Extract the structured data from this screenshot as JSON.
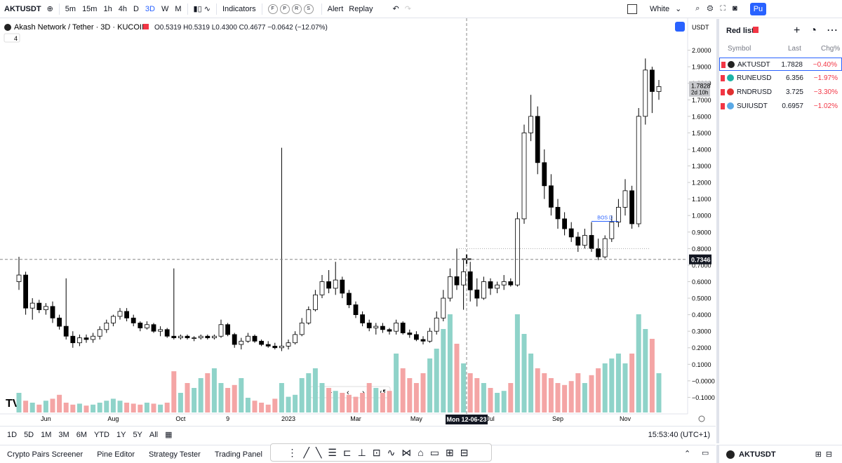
{
  "toolbar": {
    "symbol": "AKTUSDT",
    "intervals": [
      "5m",
      "15m",
      "1h",
      "4h",
      "D",
      "3D",
      "W",
      "M"
    ],
    "indicators": "Indicators",
    "templates": [
      "F",
      "P",
      "R",
      "S"
    ],
    "alert": "Alert",
    "replay": "Replay",
    "theme": "White",
    "publish": "Pu"
  },
  "legend": {
    "title": "Akash Network / Tether · 3D · KUCOIN",
    "ohlc": "O0.5319 H0.5319 L0.4300 C0.4677 −0.0642 (−12.07%)",
    "collapsed": "4"
  },
  "chart_data": {
    "type": "candlestick",
    "currency": "USDT",
    "categories": [
      null,
      null,
      null,
      null,
      "Jun",
      null,
      null,
      null,
      null,
      null,
      null,
      null,
      null,
      null,
      "Aug",
      null,
      null,
      null,
      null,
      null,
      null,
      null,
      null,
      null,
      "Oct",
      null,
      null,
      null,
      null,
      null,
      null,
      "9",
      null,
      null,
      null,
      null,
      null,
      null,
      null,
      null,
      "2023",
      null,
      null,
      null,
      null,
      null,
      null,
      null,
      null,
      null,
      "Mar",
      null,
      null,
      null,
      null,
      null,
      null,
      null,
      null,
      "May",
      null,
      null,
      null,
      null,
      null,
      null,
      null,
      null,
      null,
      null,
      "Jul",
      null,
      null,
      null,
      null,
      null,
      null,
      null,
      null,
      null,
      "Sep",
      null,
      null,
      null,
      null,
      null,
      null,
      null,
      null,
      null,
      "Nov",
      null,
      null,
      null,
      null,
      null
    ],
    "ohlc": [
      [
        0.6,
        0.75,
        0.55,
        0.64
      ],
      [
        0.64,
        0.66,
        0.4,
        0.44
      ],
      [
        0.44,
        0.5,
        0.37,
        0.47
      ],
      [
        0.47,
        0.49,
        0.41,
        0.43
      ],
      [
        0.43,
        0.47,
        0.4,
        0.45
      ],
      [
        0.45,
        0.48,
        0.35,
        0.38
      ],
      [
        0.38,
        0.4,
        0.31,
        0.33
      ],
      [
        0.33,
        0.62,
        0.25,
        0.27
      ],
      [
        0.27,
        0.3,
        0.2,
        0.23
      ],
      [
        0.23,
        0.28,
        0.21,
        0.26
      ],
      [
        0.26,
        0.28,
        0.23,
        0.25
      ],
      [
        0.25,
        0.29,
        0.23,
        0.27
      ],
      [
        0.27,
        0.33,
        0.25,
        0.31
      ],
      [
        0.31,
        0.37,
        0.29,
        0.35
      ],
      [
        0.35,
        0.4,
        0.33,
        0.39
      ],
      [
        0.39,
        0.44,
        0.37,
        0.42
      ],
      [
        0.42,
        0.44,
        0.36,
        0.38
      ],
      [
        0.38,
        0.4,
        0.33,
        0.35
      ],
      [
        0.35,
        0.36,
        0.3,
        0.32
      ],
      [
        0.32,
        0.36,
        0.31,
        0.34
      ],
      [
        0.34,
        0.35,
        0.29,
        0.3
      ],
      [
        0.3,
        0.33,
        0.27,
        0.31
      ],
      [
        0.31,
        0.32,
        0.26,
        0.27
      ],
      [
        0.27,
        0.68,
        0.25,
        0.26
      ],
      [
        0.26,
        0.28,
        0.25,
        0.27
      ],
      [
        0.27,
        0.28,
        0.25,
        0.26
      ],
      [
        0.26,
        0.27,
        0.24,
        0.26
      ],
      [
        0.26,
        0.28,
        0.25,
        0.27
      ],
      [
        0.27,
        0.28,
        0.25,
        0.26
      ],
      [
        0.26,
        0.28,
        0.25,
        0.27
      ],
      [
        0.27,
        0.37,
        0.26,
        0.34
      ],
      [
        0.34,
        0.35,
        0.27,
        0.28
      ],
      [
        0.28,
        0.29,
        0.2,
        0.22
      ],
      [
        0.22,
        0.26,
        0.19,
        0.24
      ],
      [
        0.24,
        0.29,
        0.23,
        0.27
      ],
      [
        0.27,
        0.28,
        0.23,
        0.24
      ],
      [
        0.24,
        0.25,
        0.21,
        0.22
      ],
      [
        0.22,
        0.24,
        0.2,
        0.21
      ],
      [
        0.21,
        0.23,
        0.19,
        0.2
      ],
      [
        0.2,
        1.41,
        0.18,
        0.21
      ],
      [
        0.21,
        0.25,
        0.19,
        0.23
      ],
      [
        0.23,
        0.3,
        0.22,
        0.28
      ],
      [
        0.28,
        0.38,
        0.27,
        0.35
      ],
      [
        0.35,
        0.45,
        0.34,
        0.43
      ],
      [
        0.43,
        0.55,
        0.42,
        0.52
      ],
      [
        0.52,
        0.64,
        0.5,
        0.6
      ],
      [
        0.6,
        0.67,
        0.53,
        0.56
      ],
      [
        0.56,
        0.72,
        0.52,
        0.61
      ],
      [
        0.61,
        0.63,
        0.5,
        0.53
      ],
      [
        0.53,
        0.55,
        0.44,
        0.46
      ],
      [
        0.46,
        0.48,
        0.38,
        0.4
      ],
      [
        0.4,
        0.42,
        0.33,
        0.35
      ],
      [
        0.35,
        0.37,
        0.3,
        0.32
      ],
      [
        0.32,
        0.35,
        0.28,
        0.33
      ],
      [
        0.33,
        0.35,
        0.29,
        0.31
      ],
      [
        0.31,
        0.32,
        0.28,
        0.3
      ],
      [
        0.3,
        0.37,
        0.28,
        0.35
      ],
      [
        0.35,
        0.36,
        0.28,
        0.29
      ],
      [
        0.29,
        0.31,
        0.26,
        0.28
      ],
      [
        0.28,
        0.3,
        0.24,
        0.25
      ],
      [
        0.25,
        0.27,
        0.22,
        0.24
      ],
      [
        0.24,
        0.32,
        0.23,
        0.3
      ],
      [
        0.3,
        0.42,
        0.28,
        0.38
      ],
      [
        0.38,
        0.55,
        0.36,
        0.5
      ],
      [
        0.5,
        0.68,
        0.48,
        0.63
      ],
      [
        0.63,
        0.8,
        0.55,
        0.58
      ],
      [
        0.58,
        0.73,
        0.43,
        0.66
      ],
      [
        0.66,
        0.72,
        0.48,
        0.55
      ],
      [
        0.55,
        0.62,
        0.45,
        0.5
      ],
      [
        0.5,
        0.63,
        0.49,
        0.6
      ],
      [
        0.6,
        0.62,
        0.52,
        0.56
      ],
      [
        0.56,
        0.6,
        0.53,
        0.58
      ],
      [
        0.58,
        0.64,
        0.55,
        0.6
      ],
      [
        0.6,
        0.62,
        0.57,
        0.58
      ],
      [
        0.58,
        1.02,
        0.57,
        0.98
      ],
      [
        0.98,
        1.55,
        0.95,
        1.5
      ],
      [
        1.5,
        1.73,
        1.45,
        1.6
      ],
      [
        1.6,
        1.66,
        1.25,
        1.32
      ],
      [
        1.32,
        1.4,
        1.1,
        1.18
      ],
      [
        1.18,
        1.25,
        1.0,
        1.05
      ],
      [
        1.05,
        1.1,
        0.92,
        0.98
      ],
      [
        0.98,
        1.02,
        0.88,
        0.92
      ],
      [
        0.92,
        0.96,
        0.84,
        0.87
      ],
      [
        0.87,
        0.9,
        0.78,
        0.82
      ],
      [
        0.82,
        0.92,
        0.8,
        0.88
      ],
      [
        0.88,
        0.96,
        0.78,
        0.8
      ],
      [
        0.8,
        0.86,
        0.73,
        0.75
      ],
      [
        0.75,
        0.88,
        0.74,
        0.86
      ],
      [
        0.86,
        1.0,
        0.84,
        0.96
      ],
      [
        0.96,
        1.1,
        0.93,
        1.05
      ],
      [
        1.05,
        1.22,
        1.0,
        1.15
      ],
      [
        1.15,
        1.18,
        0.92,
        0.95
      ],
      [
        0.95,
        1.65,
        0.93,
        1.6
      ],
      [
        1.6,
        1.95,
        1.55,
        1.88
      ],
      [
        1.88,
        1.9,
        1.62,
        1.75
      ],
      [
        1.75,
        1.82,
        1.7,
        1.78
      ]
    ],
    "volume": [
      20,
      12,
      10,
      8,
      12,
      14,
      18,
      10,
      8,
      9,
      7,
      8,
      10,
      12,
      14,
      12,
      10,
      9,
      8,
      10,
      9,
      8,
      10,
      42,
      20,
      30,
      25,
      35,
      40,
      45,
      30,
      25,
      28,
      35,
      15,
      12,
      10,
      8,
      14,
      30,
      16,
      18,
      35,
      40,
      45,
      30,
      25,
      22,
      20,
      18,
      16,
      20,
      30,
      25,
      20,
      22,
      60,
      45,
      35,
      30,
      40,
      55,
      65,
      85,
      100,
      70,
      50,
      40,
      35,
      30,
      25,
      20,
      22,
      30,
      100,
      80,
      60,
      45,
      40,
      35,
      30,
      28,
      32,
      40,
      30,
      38,
      45,
      50,
      55,
      60,
      50,
      60,
      100,
      85,
      75,
      40
    ],
    "up_color": "#ffffff",
    "down_color": "#000000",
    "volume_up_color": "#8fd3c9",
    "volume_down_color": "#f4a5a5",
    "ylim": [
      -0.2,
      2.1
    ],
    "yticks": [
      {
        "value": 2.0,
        "label": "2.0000"
      },
      {
        "value": 1.9,
        "label": "1.9000"
      },
      {
        "value": 1.8,
        "label": "1.8000"
      },
      {
        "value": 1.7,
        "label": "1.7000"
      },
      {
        "value": 1.6,
        "label": "1.6000"
      },
      {
        "value": 1.5,
        "label": "1.5000"
      },
      {
        "value": 1.4,
        "label": "1.4000"
      },
      {
        "value": 1.3,
        "label": "1.3000"
      },
      {
        "value": 1.2,
        "label": "1.2000"
      },
      {
        "value": 1.1,
        "label": "1.1000"
      },
      {
        "value": 1.0,
        "label": "1.0000"
      },
      {
        "value": 0.9,
        "label": "0.9000"
      },
      {
        "value": 0.8,
        "label": "0.8000"
      },
      {
        "value": 0.7,
        "label": "0.7000"
      },
      {
        "value": 0.6,
        "label": "0.6000"
      },
      {
        "value": 0.5,
        "label": "0.5000"
      },
      {
        "value": 0.4,
        "label": "0.4000"
      },
      {
        "value": 0.3,
        "label": "0.3000"
      },
      {
        "value": 0.2,
        "label": "0.2000"
      },
      {
        "value": 0.1,
        "label": "0.1000"
      },
      {
        "value": 0,
        "label": "−0.0000"
      },
      {
        "value": -0.1,
        "label": "−0.1000"
      }
    ],
    "last_price": 1.7828,
    "countdown": "2d 10h",
    "crosshair_price": 0.7346,
    "crosshair_date": "Mon 12-06-23",
    "bos": {
      "label": "BOS D",
      "value": 0.965
    },
    "level_line": 0.8
  },
  "range_bar": {
    "ranges": [
      "1D",
      "5D",
      "1M",
      "3M",
      "6M",
      "YTD",
      "1Y",
      "5Y",
      "All"
    ],
    "clock": "15:53:40 (UTC+1)"
  },
  "tabs": [
    "Crypto Pairs Screener",
    "Pine Editor",
    "Strategy Tester",
    "Trading Panel"
  ],
  "watchlist": {
    "title": "Red list",
    "columns": [
      "Symbol",
      "Last",
      "Chg%"
    ],
    "rows": [
      [
        "AKTUSDT",
        "1.7828",
        "−0.40%"
      ],
      [
        "RUNEUSD",
        "6.356",
        "−1.97%"
      ],
      [
        "RNDRUSD",
        "3.725",
        "−3.30%"
      ],
      [
        "SUIUSDT",
        "0.6957",
        "−1.02%"
      ]
    ]
  },
  "footer_symbol": "AKTUSDT"
}
